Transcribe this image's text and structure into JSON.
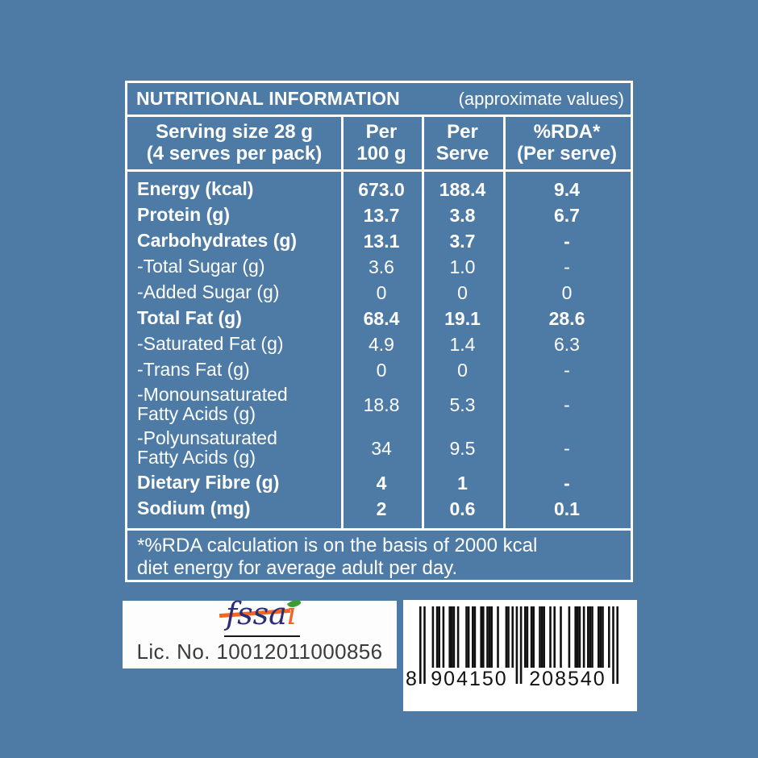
{
  "colors": {
    "background": "#4e7ba5",
    "table_text": "#ffffff",
    "table_border": "#ffffff",
    "fssai_navy": "#2b2d7a",
    "fssai_orange": "#f26522",
    "fssai_green": "#3f9c35",
    "barcode_ink": "#111111"
  },
  "table": {
    "title": "NUTRITIONAL INFORMATION",
    "title_note": "(approximate values)",
    "headers": [
      "Serving size 28 g\n(4 serves per pack)",
      "Per\n100 g",
      "Per\nServe",
      "%RDA*\n(Per serve)"
    ],
    "rows": [
      {
        "label": "Energy (kcal)",
        "per_100g": "673.0",
        "per_serve": "188.4",
        "rda": "9.4",
        "bold": true,
        "two_line": false
      },
      {
        "label": "Protein (g)",
        "per_100g": "13.7",
        "per_serve": "3.8",
        "rda": "6.7",
        "bold": true,
        "two_line": false
      },
      {
        "label": "Carbohydrates (g)",
        "per_100g": "13.1",
        "per_serve": "3.7",
        "rda": "-",
        "bold": true,
        "two_line": false
      },
      {
        "label": "-Total Sugar (g)",
        "per_100g": "3.6",
        "per_serve": "1.0",
        "rda": "-",
        "bold": false,
        "two_line": false
      },
      {
        "label": "-Added Sugar (g)",
        "per_100g": "0",
        "per_serve": "0",
        "rda": "0",
        "bold": false,
        "two_line": false
      },
      {
        "label": "Total Fat (g)",
        "per_100g": "68.4",
        "per_serve": "19.1",
        "rda": "28.6",
        "bold": true,
        "two_line": false
      },
      {
        "label": "-Saturated Fat (g)",
        "per_100g": "4.9",
        "per_serve": "1.4",
        "rda": "6.3",
        "bold": false,
        "two_line": false
      },
      {
        "label": "-Trans Fat (g)",
        "per_100g": "0",
        "per_serve": "0",
        "rda": "-",
        "bold": false,
        "two_line": false
      },
      {
        "label": "-Monounsaturated\nFatty Acids (g)",
        "per_100g": "18.8",
        "per_serve": "5.3",
        "rda": "-",
        "bold": false,
        "two_line": true
      },
      {
        "label": "-Polyunsaturated\nFatty Acids (g)",
        "per_100g": "34",
        "per_serve": "9.5",
        "rda": "-",
        "bold": false,
        "two_line": true
      },
      {
        "label": "Dietary Fibre (g)",
        "per_100g": "4",
        "per_serve": "1",
        "rda": "-",
        "bold": true,
        "two_line": false
      },
      {
        "label": "Sodium (mg)",
        "per_100g": "2",
        "per_serve": "0.6",
        "rda": "0.1",
        "bold": true,
        "two_line": false
      }
    ],
    "footnote": "*%RDA calculation is on the basis of 2000 kcal\ndiet energy for average adult per day."
  },
  "fssai": {
    "logo_text": "fssa",
    "logo_i": "i",
    "license": "Lic. No. 10012011000856"
  },
  "barcode": {
    "digits": "8904150208540",
    "display_first": "8",
    "display_group1": "904150",
    "display_group2": "208540"
  }
}
